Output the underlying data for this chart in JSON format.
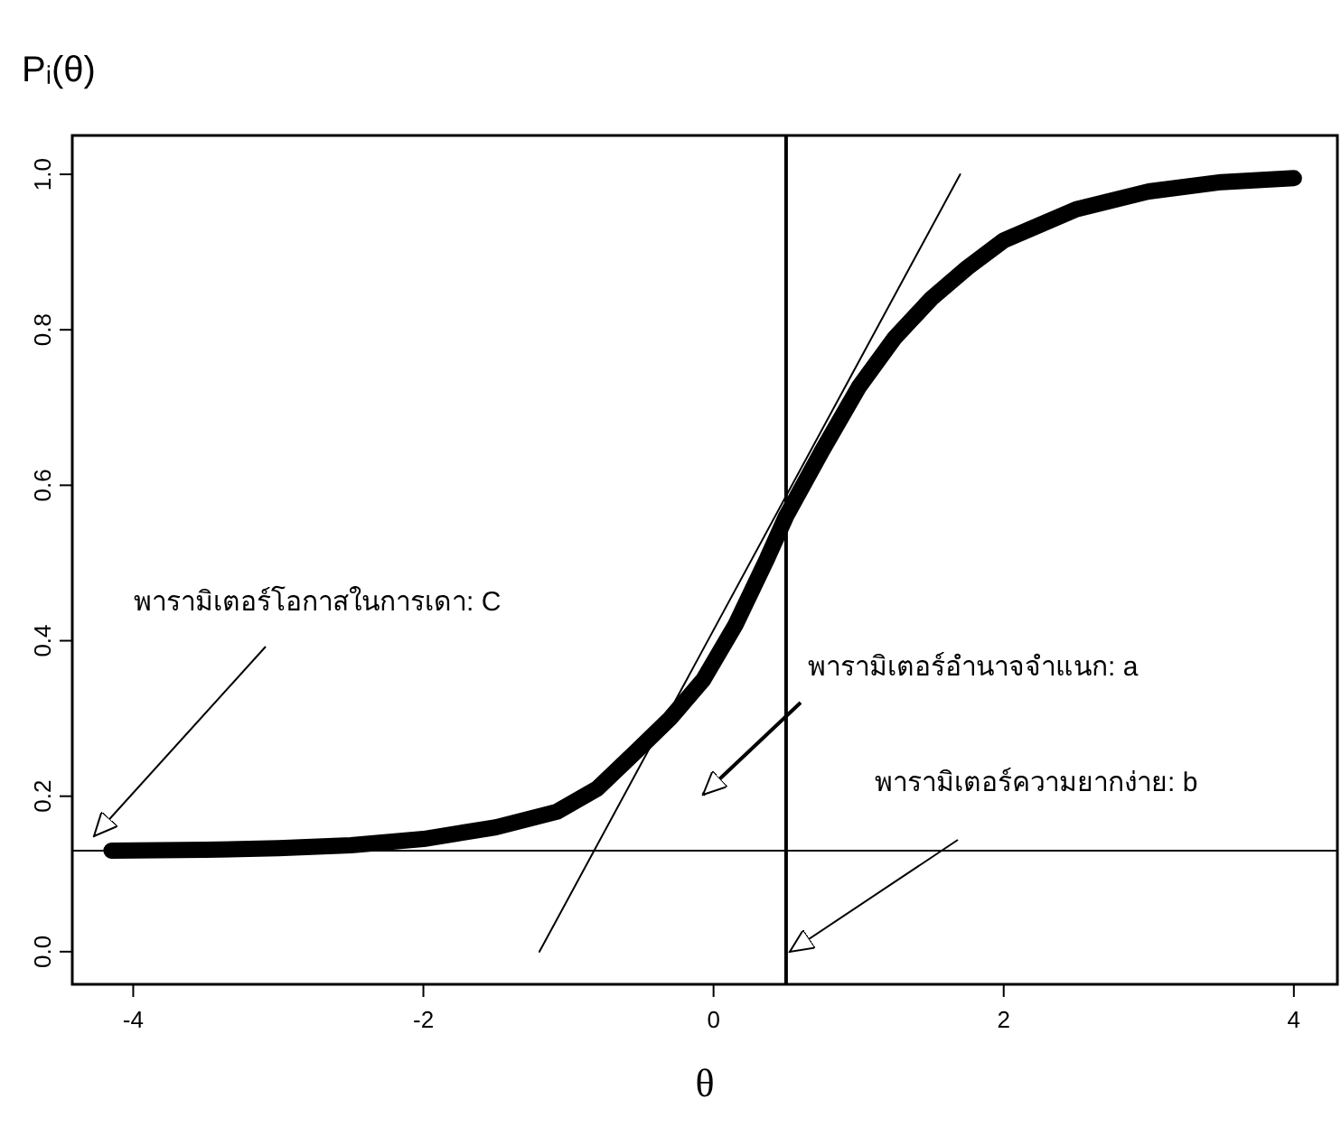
{
  "chart_data": {
    "type": "line",
    "ylabel": "Pᵢ(θ)",
    "xlabel": "θ",
    "xlim": [
      -4.42,
      4.3
    ],
    "ylim": [
      -0.042,
      1.05
    ],
    "xticks": [
      -4,
      -2,
      0,
      2,
      4
    ],
    "yticks": [
      {
        "value": 0,
        "label": "0.0"
      },
      {
        "value": 0.2,
        "label": "0.2"
      },
      {
        "value": 0.4,
        "label": "0.4"
      },
      {
        "value": 0.6,
        "label": "0.6"
      },
      {
        "value": 0.8,
        "label": "0.8"
      },
      {
        "value": 1,
        "label": "1.0"
      }
    ],
    "grid": false,
    "series": [
      {
        "color": "#000000",
        "x": [
          -4.15,
          -3.5,
          -3,
          -2.5,
          -2,
          -1.5,
          -1.08,
          -0.8,
          -0.52,
          -0.3,
          -0.07,
          0.15,
          0.37,
          0.5,
          0.75,
          1,
          1.25,
          1.5,
          1.75,
          2,
          2.5,
          3,
          3.5,
          4
        ],
        "values": [
          0.13,
          0.131,
          0.133,
          0.137,
          0.145,
          0.16,
          0.18,
          0.21,
          0.26,
          0.3,
          0.35,
          0.42,
          0.506,
          0.56,
          0.645,
          0.726,
          0.79,
          0.84,
          0.88,
          0.915,
          0.955,
          0.978,
          0.99,
          0.995
        ]
      },
      {
        "type": "line",
        "color": "#000000",
        "x": [
          -1.2,
          1.7
        ],
        "values": [
          0,
          1
        ]
      }
    ],
    "ref_lines": [
      {
        "axis": "y",
        "value": 0.13
      },
      {
        "axis": "x",
        "value": 0.5
      }
    ],
    "annotations": [
      "พารามิเตอร์โอกาสในการเดา: C",
      "พารามิเตอร์อำนาจจำแนก: a",
      "พารามิเตอร์ความยากง่าย: b"
    ]
  }
}
